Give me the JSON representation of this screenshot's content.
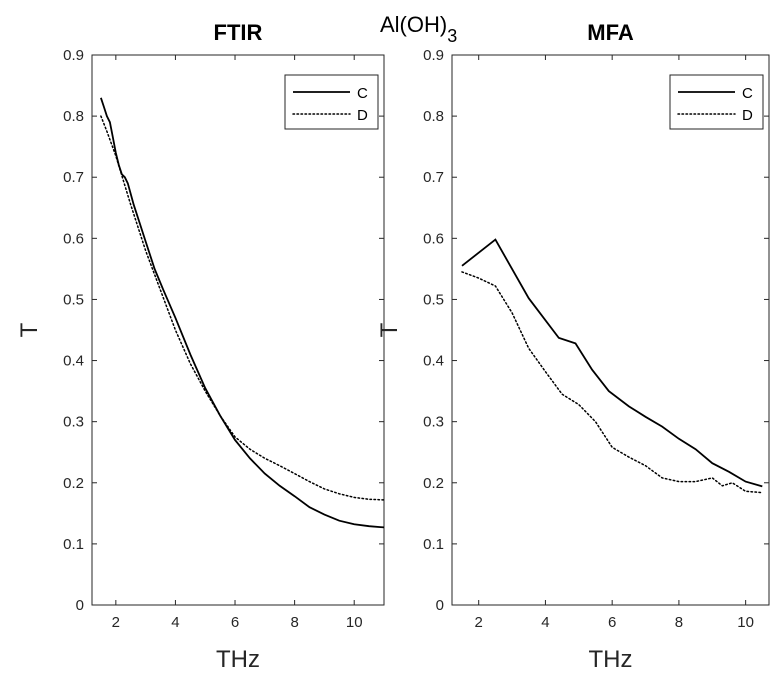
{
  "figure": {
    "supertitle": "Al(OH)",
    "supertitle_sub": "3"
  },
  "chart_data": [
    {
      "type": "line",
      "title": "FTIR",
      "xlabel": "THz",
      "ylabel": "T",
      "xlim": [
        1.2,
        11
      ],
      "ylim": [
        0,
        0.9
      ],
      "xticks": [
        2,
        4,
        6,
        8,
        10
      ],
      "yticks": [
        0,
        0.1,
        0.2,
        0.3,
        0.4,
        0.5,
        0.6,
        0.7,
        0.8,
        0.9
      ],
      "ytick_labels": [
        "0",
        "0.1",
        "0.2",
        "0.3",
        "0.4",
        "0.5",
        "0.6",
        "0.7",
        "0.8",
        "0.9"
      ],
      "legend_position": "top-right",
      "series": [
        {
          "name": "C",
          "style": "solid",
          "x": [
            1.5,
            1.6,
            1.7,
            1.8,
            1.9,
            2.0,
            2.1,
            2.2,
            2.3,
            2.4,
            2.6,
            2.8,
            3.0,
            3.3,
            3.6,
            4.0,
            4.5,
            5.0,
            5.5,
            6.0,
            6.5,
            7.0,
            7.5,
            8.0,
            8.5,
            9.0,
            9.5,
            10.0,
            10.5,
            11.0
          ],
          "y": [
            0.83,
            0.815,
            0.8,
            0.79,
            0.765,
            0.74,
            0.72,
            0.705,
            0.7,
            0.69,
            0.655,
            0.625,
            0.595,
            0.55,
            0.515,
            0.47,
            0.41,
            0.355,
            0.31,
            0.27,
            0.24,
            0.215,
            0.195,
            0.178,
            0.16,
            0.148,
            0.138,
            0.132,
            0.129,
            0.127
          ]
        },
        {
          "name": "D",
          "style": "dotted",
          "x": [
            1.5,
            1.7,
            2.0,
            2.5,
            3.0,
            3.5,
            4.0,
            4.5,
            5.0,
            5.5,
            6.0,
            6.5,
            7.0,
            7.5,
            8.0,
            8.5,
            9.0,
            9.5,
            10.0,
            10.5,
            11.0
          ],
          "y": [
            0.8,
            0.775,
            0.735,
            0.655,
            0.58,
            0.515,
            0.45,
            0.395,
            0.35,
            0.31,
            0.275,
            0.255,
            0.24,
            0.228,
            0.215,
            0.202,
            0.19,
            0.182,
            0.176,
            0.173,
            0.172
          ]
        }
      ]
    },
    {
      "type": "line",
      "title": "MFA",
      "xlabel": "THz",
      "ylabel": "T",
      "xlim": [
        1.2,
        10.7
      ],
      "ylim": [
        0,
        0.9
      ],
      "xticks": [
        2,
        4,
        6,
        8,
        10
      ],
      "yticks": [
        0,
        0.1,
        0.2,
        0.3,
        0.4,
        0.5,
        0.6,
        0.7,
        0.8,
        0.9
      ],
      "ytick_labels": [
        "0",
        "0.1",
        "0.2",
        "0.3",
        "0.4",
        "0.5",
        "0.6",
        "0.7",
        "0.8",
        "0.9"
      ],
      "legend_position": "top-right",
      "series": [
        {
          "name": "C",
          "style": "solid",
          "x": [
            1.5,
            2.5,
            3.5,
            4.4,
            4.9,
            5.4,
            5.9,
            6.5,
            7.0,
            7.5,
            8.0,
            8.5,
            9.0,
            9.5,
            10.0,
            10.5
          ],
          "y": [
            0.555,
            0.598,
            0.502,
            0.437,
            0.428,
            0.385,
            0.35,
            0.325,
            0.308,
            0.292,
            0.272,
            0.255,
            0.232,
            0.218,
            0.202,
            0.194
          ]
        },
        {
          "name": "D",
          "style": "dotted",
          "x": [
            1.5,
            2.0,
            2.5,
            3.0,
            3.5,
            4.0,
            4.5,
            5.0,
            5.5,
            6.0,
            6.5,
            7.0,
            7.5,
            8.0,
            8.5,
            9.0,
            9.3,
            9.6,
            10.0,
            10.5
          ],
          "y": [
            0.545,
            0.535,
            0.522,
            0.478,
            0.42,
            0.382,
            0.345,
            0.328,
            0.3,
            0.258,
            0.242,
            0.228,
            0.208,
            0.202,
            0.202,
            0.208,
            0.195,
            0.2,
            0.186,
            0.184
          ]
        }
      ]
    }
  ]
}
